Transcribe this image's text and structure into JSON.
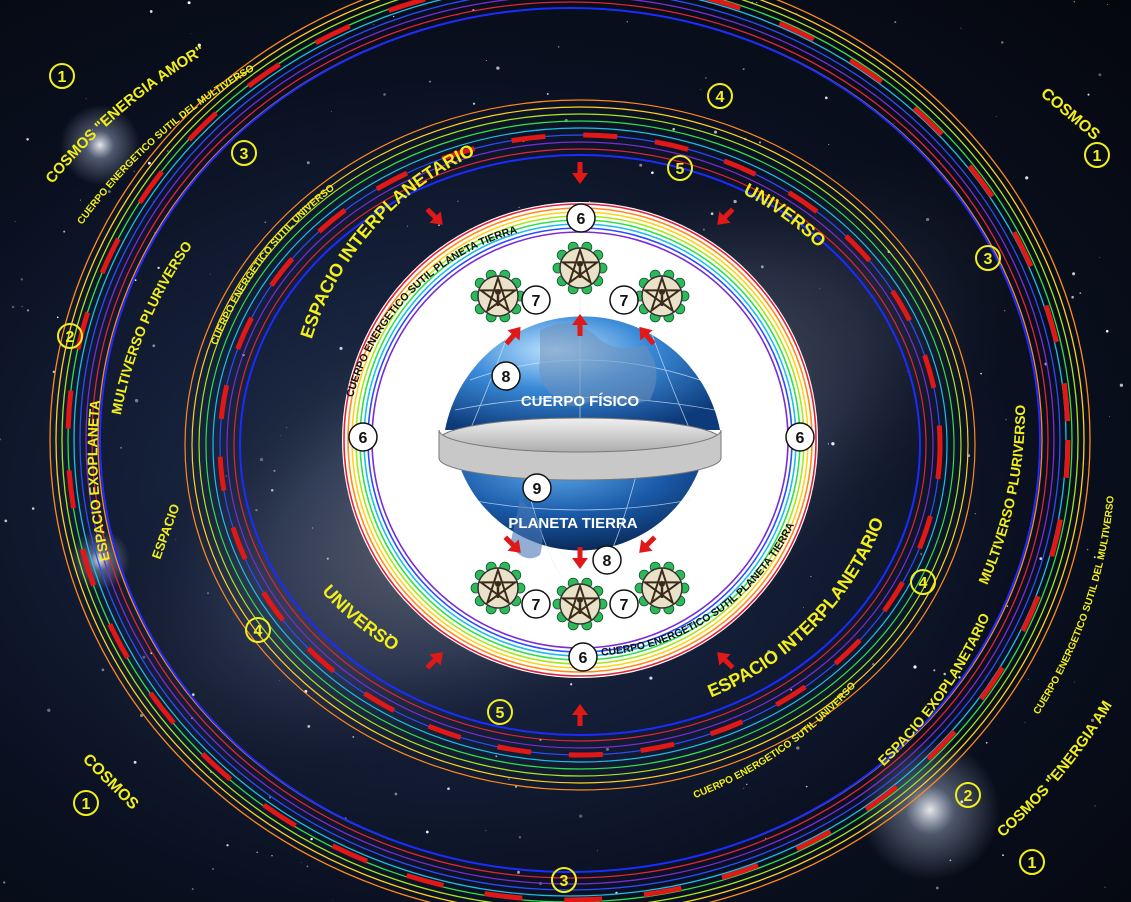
{
  "labels": {
    "cosmos_amor": "COSMOS \"ENERGIA AMOR\"",
    "cosmos": "COSMOS",
    "cuerpo_multiverso": "CUERPO ENERGETICO SUTIL DEL MULTIVERSO",
    "pluriverso": "MULTIVERSO  PLURIVERSO",
    "exoplanetario": "ESPACIO  EXOPLANETARIO",
    "cuerpo_universo": "CUERPO ENERGETICO SUTIL UNIVERSO",
    "interplanetario": "ESPACIO  INTERPLANETARIO",
    "universo": "UNIVERSO",
    "cuerpo_tierra": "CUERPO ENERGETICO SUTIL PLANETA TIERRA",
    "cuerpo_fisico": "CUERPO FÍSICO",
    "planeta_tierra": "PLANETA TIERRA"
  },
  "numbers": {
    "n1": "1",
    "n2": "2",
    "n3": "3",
    "n4": "4",
    "n5": "5",
    "n6": "6",
    "n7": "7",
    "n8": "8",
    "n9": "9"
  },
  "colors": {
    "label": "#f2ef1a",
    "dash": "#e01818",
    "arrow": "#e01818",
    "ring_palette": [
      "#ff8a1c",
      "#ffd21a",
      "#a8e61c",
      "#2ee04a",
      "#18c0e8",
      "#2a4dff",
      "#7a2bd8",
      "#e0243a"
    ]
  },
  "icons": [
    "pentagram-flower-icon",
    "red-arrow-icon",
    "galaxy-background"
  ]
}
